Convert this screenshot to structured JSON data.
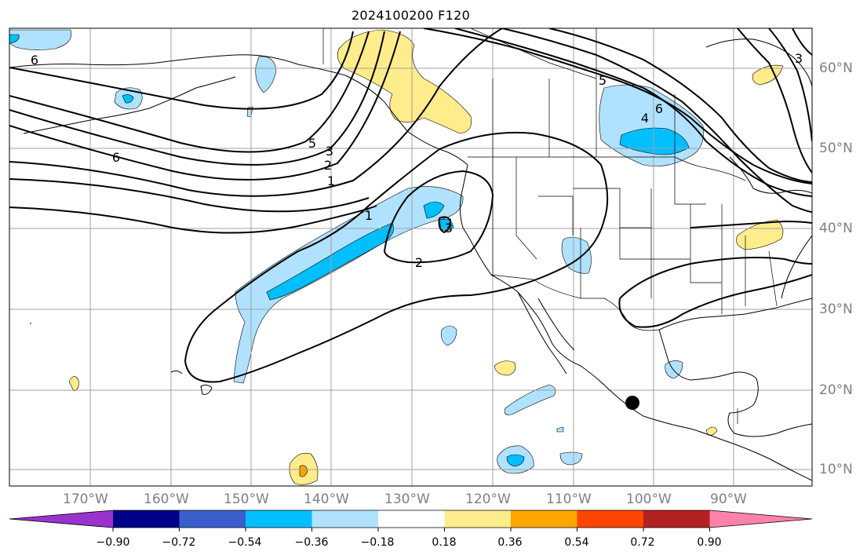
{
  "title": "2024100200 F120",
  "map": {
    "lon_labels": [
      "170°W",
      "160°W",
      "150°W",
      "140°W",
      "130°W",
      "120°W",
      "110°W",
      "100°W",
      "90°W"
    ],
    "lat_labels": [
      "60°N",
      "50°N",
      "40°N",
      "30°N",
      "20°N",
      "10°N"
    ],
    "contour_labels": [
      "6",
      "6",
      "5",
      "3",
      "2",
      "1",
      "5",
      "6",
      "4",
      "1",
      "2",
      "3",
      "3"
    ],
    "marker": "city-marker"
  },
  "colorbar": {
    "colors": [
      "#9a32cd",
      "#00008b",
      "#3a5fcd",
      "#00bfff",
      "#b0e2ff",
      "#ffffff",
      "#ffec8b",
      "#ffa500",
      "#ff4500",
      "#b22222",
      "#ff82ab"
    ],
    "tick_labels": [
      "−0.90",
      "−0.72",
      "−0.54",
      "−0.36",
      "−0.18",
      "0.18",
      "0.36",
      "0.54",
      "0.72",
      "0.90"
    ]
  }
}
